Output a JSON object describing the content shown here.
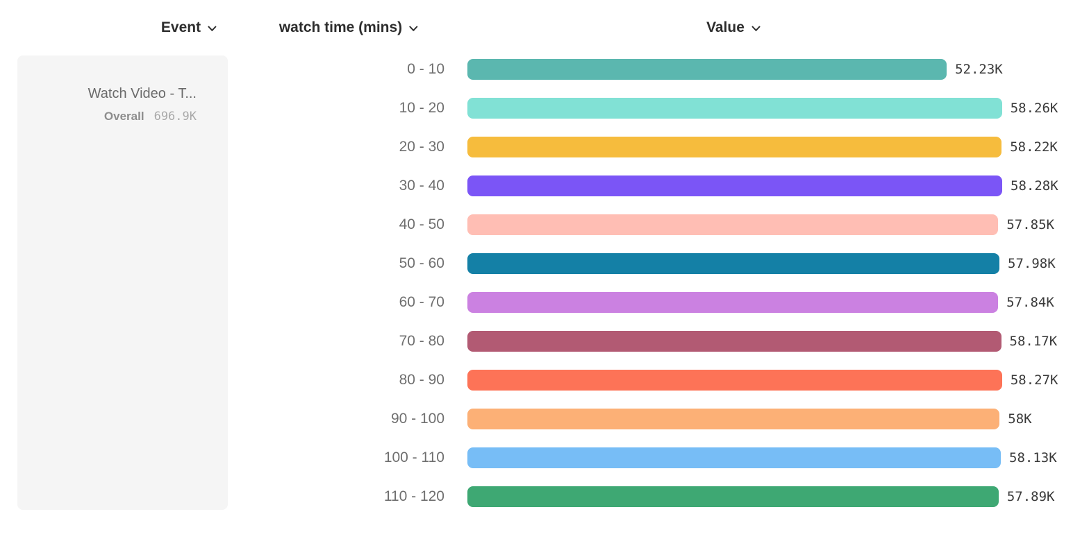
{
  "columns": {
    "event": {
      "label": "Event"
    },
    "breakdown": {
      "label": "watch time (mins)"
    },
    "value": {
      "label": "Value"
    }
  },
  "event_card": {
    "title": "Watch Video - T...",
    "overall_label": "Overall",
    "overall_value": "696.9K"
  },
  "chart_data": {
    "type": "bar",
    "orientation": "horizontal",
    "title": "",
    "xlabel": "Value",
    "ylabel": "watch time (mins)",
    "categories": [
      "0 - 10",
      "10 - 20",
      "20 - 30",
      "30 - 40",
      "40 - 50",
      "50 - 60",
      "60 - 70",
      "70 - 80",
      "80 - 90",
      "90 - 100",
      "100 - 110",
      "110 - 120"
    ],
    "values": [
      52230,
      58260,
      58220,
      58280,
      57850,
      57980,
      57840,
      58170,
      58270,
      58000,
      58130,
      57890
    ],
    "value_labels": [
      "52.23K",
      "58.26K",
      "58.22K",
      "58.28K",
      "57.85K",
      "57.98K",
      "57.84K",
      "58.17K",
      "58.27K",
      "58K",
      "58.13K",
      "57.89K"
    ],
    "colors": [
      "#5bb7af",
      "#81e1d5",
      "#f6bc3d",
      "#7b55f6",
      "#ffbeb4",
      "#1480a6",
      "#cb81e1",
      "#b25a73",
      "#fd7357",
      "#fcb076",
      "#77bdf6",
      "#3ea873"
    ],
    "xlim": [
      0,
      58280
    ],
    "grid": false,
    "legend": "none",
    "bar_label_position": "end"
  }
}
